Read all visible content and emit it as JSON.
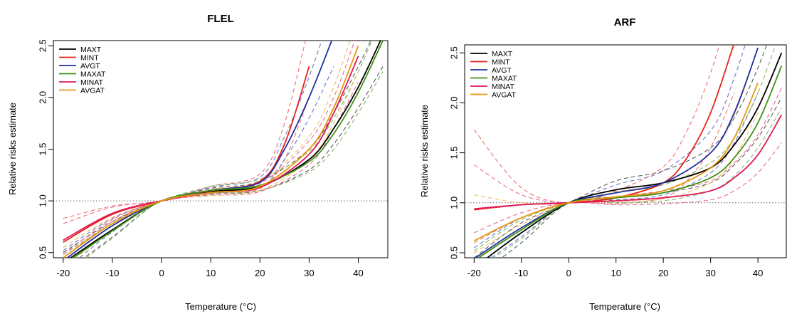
{
  "colors": {
    "MAXT": "#000000",
    "MINT": "#e8231a",
    "AVGT": "#1f2fa0",
    "MAXAT": "#3f8f14",
    "MINAT": "#e0185a",
    "AVGAT": "#e8960c"
  },
  "chart_data": [
    {
      "type": "line",
      "title": "FLEL",
      "xlabel": "Temperature (°C)",
      "ylabel": "Relative risks estimate",
      "xlim": [
        -22,
        46
      ],
      "ylim": [
        0.45,
        2.55
      ],
      "xticks": [
        "-20",
        "-10",
        "0",
        "10",
        "20",
        "30",
        "40"
      ],
      "xtick_values": [
        -20,
        -10,
        0,
        10,
        20,
        30,
        40
      ],
      "yticks": [
        "0.5",
        "1.0",
        "1.5",
        "2.0",
        "2.5"
      ],
      "ytick_values": [
        0.5,
        1.0,
        1.5,
        2.0,
        2.5
      ],
      "reference_line": 1.0,
      "grid": false,
      "legend_position": "top-left",
      "series": [
        {
          "name": "MAXT",
          "x": [
            -20,
            -10,
            0,
            10,
            20,
            30,
            35,
            40,
            45
          ],
          "y": [
            0.4,
            0.72,
            1.0,
            1.09,
            1.14,
            1.4,
            1.7,
            2.1,
            2.6
          ],
          "lower": [
            0.3,
            0.65,
            1.0,
            1.06,
            1.1,
            1.3,
            1.55,
            1.9,
            2.3
          ],
          "upper": [
            0.5,
            0.8,
            1.0,
            1.12,
            1.19,
            1.5,
            1.85,
            2.3,
            2.8
          ]
        },
        {
          "name": "MINT",
          "x": [
            -20,
            -10,
            0,
            10,
            20,
            25,
            30
          ],
          "y": [
            0.6,
            0.87,
            1.0,
            1.1,
            1.19,
            1.55,
            2.3
          ],
          "lower": [
            0.45,
            0.8,
            1.0,
            1.06,
            1.12,
            1.4,
            2.0
          ],
          "upper": [
            0.83,
            0.95,
            1.0,
            1.14,
            1.26,
            1.75,
            2.7
          ]
        },
        {
          "name": "AVGT",
          "x": [
            -20,
            -10,
            0,
            10,
            20,
            25,
            30,
            35
          ],
          "y": [
            0.42,
            0.76,
            1.0,
            1.1,
            1.18,
            1.5,
            2.0,
            2.6
          ],
          "lower": [
            0.32,
            0.7,
            1.0,
            1.07,
            1.13,
            1.4,
            1.8,
            2.3
          ],
          "upper": [
            0.52,
            0.83,
            1.0,
            1.13,
            1.23,
            1.62,
            2.2,
            2.9
          ]
        },
        {
          "name": "MAXAT",
          "x": [
            -20,
            -10,
            0,
            10,
            20,
            30,
            35,
            40,
            45
          ],
          "y": [
            0.38,
            0.71,
            1.0,
            1.1,
            1.15,
            1.38,
            1.65,
            2.05,
            2.55
          ],
          "lower": [
            0.28,
            0.64,
            1.0,
            1.07,
            1.1,
            1.28,
            1.5,
            1.85,
            2.25
          ],
          "upper": [
            0.48,
            0.78,
            1.0,
            1.14,
            1.21,
            1.48,
            1.8,
            2.25,
            2.8
          ]
        },
        {
          "name": "MINAT",
          "x": [
            -20,
            -10,
            0,
            10,
            20,
            30,
            35,
            40
          ],
          "y": [
            0.62,
            0.88,
            1.0,
            1.08,
            1.13,
            1.45,
            1.85,
            2.4
          ],
          "lower": [
            0.48,
            0.82,
            1.0,
            1.05,
            1.09,
            1.35,
            1.7,
            2.15
          ],
          "upper": [
            0.78,
            0.94,
            1.0,
            1.11,
            1.17,
            1.58,
            2.0,
            2.65
          ]
        },
        {
          "name": "AVGAT",
          "x": [
            -20,
            -10,
            0,
            10,
            20,
            30,
            35,
            40
          ],
          "y": [
            0.45,
            0.78,
            1.0,
            1.08,
            1.14,
            1.5,
            1.9,
            2.5
          ],
          "lower": [
            0.35,
            0.72,
            1.0,
            1.05,
            1.1,
            1.4,
            1.75,
            2.25
          ],
          "upper": [
            0.55,
            0.84,
            1.0,
            1.11,
            1.19,
            1.62,
            2.1,
            2.8
          ]
        }
      ]
    },
    {
      "type": "line",
      "title": "ARF",
      "xlabel": "Temperature (°C)",
      "ylabel": "Relative risks estimate",
      "xlim": [
        -22,
        46
      ],
      "ylim": [
        0.45,
        2.58
      ],
      "xticks": [
        "-20",
        "-10",
        "0",
        "10",
        "20",
        "30",
        "40"
      ],
      "xtick_values": [
        -20,
        -10,
        0,
        10,
        20,
        30,
        40
      ],
      "yticks": [
        "0.5",
        "1.0",
        "1.5",
        "2.0",
        "2.5"
      ],
      "ytick_values": [
        0.5,
        1.0,
        1.5,
        2.0,
        2.5
      ],
      "reference_line": 1.0,
      "grid": false,
      "legend_position": "top-left",
      "series": [
        {
          "name": "MAXT",
          "x": [
            -20,
            -10,
            0,
            10,
            20,
            30,
            35,
            40,
            45
          ],
          "y": [
            0.35,
            0.7,
            1.0,
            1.13,
            1.2,
            1.35,
            1.58,
            1.95,
            2.5
          ],
          "lower": [
            0.25,
            0.6,
            1.0,
            1.06,
            1.1,
            1.2,
            1.38,
            1.65,
            2.05
          ],
          "upper": [
            0.45,
            0.8,
            1.0,
            1.22,
            1.32,
            1.55,
            1.85,
            2.35,
            3.0
          ]
        },
        {
          "name": "MINT",
          "x": [
            -20,
            -10,
            0,
            10,
            20,
            25,
            30,
            35
          ],
          "y": [
            0.93,
            0.98,
            1.0,
            1.05,
            1.2,
            1.45,
            1.9,
            2.6
          ],
          "lower": [
            0.6,
            0.85,
            1.0,
            0.99,
            1.05,
            1.22,
            1.55,
            2.1
          ],
          "upper": [
            1.73,
            1.15,
            1.0,
            1.12,
            1.36,
            1.72,
            2.3,
            3.1
          ]
        },
        {
          "name": "AVGT",
          "x": [
            -20,
            -10,
            0,
            10,
            20,
            30,
            35,
            40
          ],
          "y": [
            0.44,
            0.75,
            1.0,
            1.1,
            1.2,
            1.5,
            1.9,
            2.55
          ],
          "lower": [
            0.33,
            0.66,
            1.0,
            1.03,
            1.08,
            1.3,
            1.6,
            2.1
          ],
          "upper": [
            0.55,
            0.85,
            1.0,
            1.18,
            1.32,
            1.72,
            2.25,
            3.0
          ]
        },
        {
          "name": "MAXAT",
          "x": [
            -20,
            -10,
            0,
            10,
            20,
            30,
            35,
            40,
            45
          ],
          "y": [
            0.42,
            0.73,
            1.0,
            1.05,
            1.1,
            1.25,
            1.45,
            1.8,
            2.37
          ],
          "lower": [
            0.32,
            0.64,
            1.0,
            1.0,
            1.02,
            1.12,
            1.27,
            1.55,
            1.95
          ],
          "upper": [
            0.52,
            0.83,
            1.0,
            1.1,
            1.18,
            1.4,
            1.65,
            2.1,
            2.75
          ]
        },
        {
          "name": "MINAT",
          "x": [
            -20,
            -10,
            0,
            10,
            20,
            30,
            35,
            40,
            45
          ],
          "y": [
            0.94,
            0.98,
            1.0,
            1.02,
            1.05,
            1.12,
            1.25,
            1.48,
            1.88
          ],
          "lower": [
            0.7,
            0.9,
            1.0,
            0.98,
            0.99,
            1.03,
            1.12,
            1.3,
            1.6
          ],
          "upper": [
            1.38,
            1.08,
            1.0,
            1.06,
            1.12,
            1.22,
            1.4,
            1.68,
            2.15
          ]
        },
        {
          "name": "AVGAT",
          "x": [
            -20,
            -10,
            0,
            10,
            20,
            30,
            35,
            40
          ],
          "y": [
            0.62,
            0.85,
            1.0,
            1.06,
            1.12,
            1.35,
            1.65,
            2.2
          ],
          "lower": [
            0.5,
            0.78,
            1.0,
            1.01,
            1.04,
            1.2,
            1.45,
            1.9
          ],
          "upper": [
            1.08,
            1.0,
            1.0,
            1.11,
            1.2,
            1.5,
            1.88,
            2.55
          ]
        }
      ]
    }
  ]
}
